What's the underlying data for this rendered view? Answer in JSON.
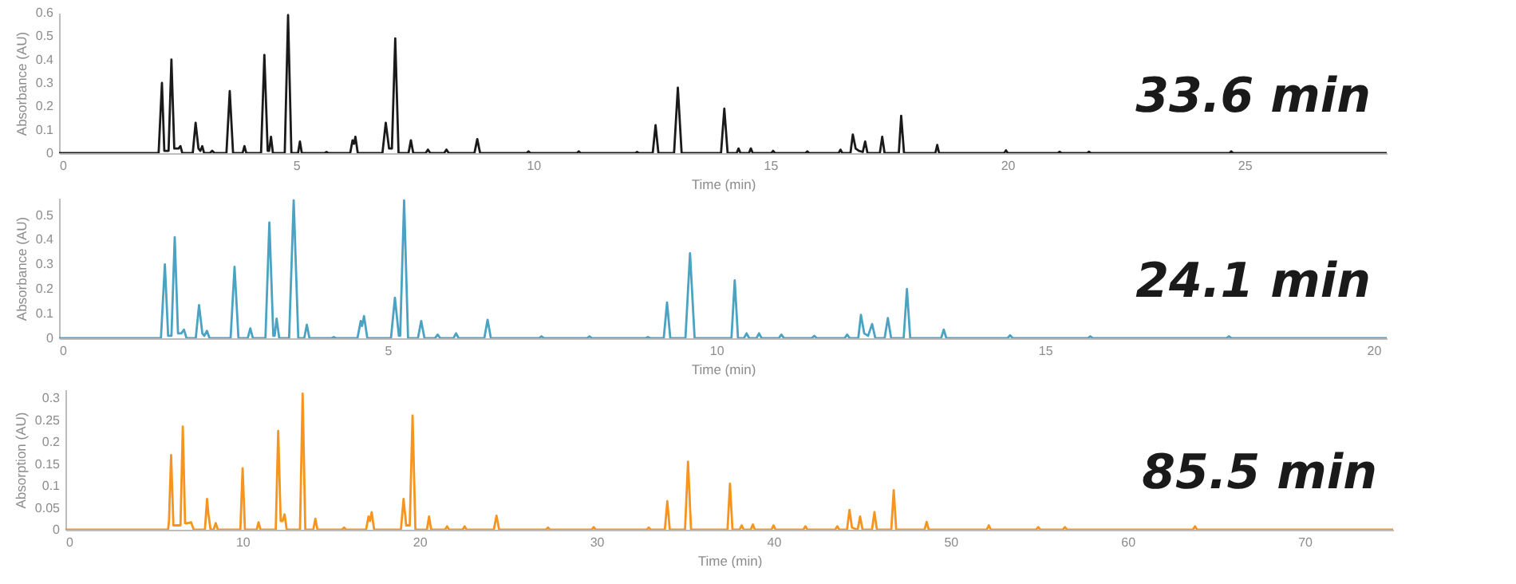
{
  "chart_data": [
    {
      "type": "line",
      "xlabel": "Time (min)",
      "ylabel": "Absorbance (AU)",
      "xlim": [
        0,
        28
      ],
      "xticks": [
        0,
        5,
        10,
        15,
        20,
        25
      ],
      "ylim": [
        0,
        0.6
      ],
      "yticks": [
        0,
        0.1,
        0.2,
        0.3,
        0.4,
        0.5,
        0.6
      ],
      "annotations": [
        "33.6 min"
      ],
      "x": [
        0,
        2.1,
        2.17,
        2.22,
        2.31,
        2.37,
        2.43,
        2.52,
        2.56,
        2.6,
        2.82,
        2.88,
        2.94,
        2.98,
        3.02,
        3.06,
        3.18,
        3.23,
        3.28,
        3.53,
        3.6,
        3.67,
        3.87,
        3.91,
        3.95,
        4.26,
        4.33,
        4.4,
        4.43,
        4.47,
        4.51,
        4.76,
        4.83,
        4.9,
        5.04,
        5.08,
        5.12,
        5.6,
        5.64,
        5.68,
        6.14,
        6.19,
        6.22,
        6.25,
        6.3,
        6.82,
        6.89,
        6.96,
        7.02,
        7.09,
        7.16,
        7.37,
        7.42,
        7.47,
        7.73,
        7.78,
        7.83,
        8.12,
        8.17,
        8.22,
        8.76,
        8.82,
        8.88,
        9.86,
        9.9,
        9.94,
        10.92,
        10.96,
        11.0,
        12.15,
        12.19,
        12.23,
        12.52,
        12.58,
        12.64,
        12.97,
        13.05,
        13.13,
        13.96,
        14.03,
        14.1,
        14.29,
        14.33,
        14.37,
        14.55,
        14.59,
        14.63,
        15.02,
        15.06,
        15.1,
        15.74,
        15.78,
        15.82,
        16.44,
        16.48,
        16.52,
        16.69,
        16.74,
        16.8,
        16.87,
        16.95,
        17.0,
        17.05,
        17.31,
        17.36,
        17.41,
        17.71,
        17.76,
        17.82,
        18.48,
        18.52,
        18.56,
        19.93,
        19.97,
        20.01,
        21.06,
        21.1,
        21.14,
        21.68,
        21.72,
        21.76,
        24.68,
        24.72,
        24.76,
        28
      ],
      "series": [
        {
          "color": "#1a1a1a",
          "values": [
            0,
            0,
            0.3,
            0.01,
            0.01,
            0.4,
            0.02,
            0.02,
            0.03,
            0,
            0,
            0.13,
            0.02,
            0.01,
            0.03,
            0,
            0,
            0.01,
            0,
            0,
            0.265,
            0,
            0,
            0.03,
            0,
            0,
            0.42,
            0.01,
            0.01,
            0.07,
            0,
            0,
            0.59,
            0,
            0,
            0.05,
            0,
            0,
            0.005,
            0,
            0,
            0.055,
            0.04,
            0.07,
            0,
            0,
            0.13,
            0.02,
            0.02,
            0.49,
            0,
            0,
            0.055,
            0,
            0,
            0.015,
            0,
            0,
            0.015,
            0,
            0,
            0.06,
            0,
            0,
            0.008,
            0,
            0,
            0.008,
            0,
            0,
            0.005,
            0,
            0,
            0.12,
            0,
            0,
            0.28,
            0,
            0,
            0.19,
            0,
            0,
            0.02,
            0,
            0,
            0.02,
            0,
            0,
            0.01,
            0,
            0,
            0.008,
            0,
            0,
            0.015,
            0,
            0,
            0.08,
            0.02,
            0.01,
            0.005,
            0.05,
            0,
            0,
            0.07,
            0,
            0,
            0.16,
            0,
            0,
            0.035,
            0,
            0,
            0.012,
            0,
            0,
            0.006,
            0,
            0,
            0.006,
            0,
            0,
            0.008,
            0,
            0
          ]
        }
      ]
    },
    {
      "type": "line",
      "xlabel": "Time (min)",
      "ylabel": "Absorbance (AU)",
      "xlim": [
        0,
        20.2
      ],
      "xticks": [
        0,
        5,
        10,
        15,
        20
      ],
      "ylim": [
        0,
        0.57
      ],
      "yticks": [
        0,
        0.1,
        0.2,
        0.3,
        0.4,
        0.5
      ],
      "annotations": [
        "24.1 min"
      ],
      "x": [
        0,
        1.55,
        1.61,
        1.66,
        1.71,
        1.76,
        1.81,
        1.86,
        1.9,
        1.94,
        2.08,
        2.13,
        2.18,
        2.21,
        2.25,
        2.29,
        2.61,
        2.67,
        2.73,
        2.87,
        2.91,
        2.95,
        3.14,
        3.2,
        3.26,
        3.28,
        3.31,
        3.35,
        3.5,
        3.57,
        3.64,
        3.73,
        3.77,
        3.81,
        4.14,
        4.18,
        4.22,
        4.54,
        4.59,
        4.61,
        4.64,
        4.69,
        5.05,
        5.11,
        5.17,
        5.19,
        5.25,
        5.31,
        5.46,
        5.51,
        5.56,
        5.72,
        5.76,
        5.8,
        6.0,
        6.04,
        6.08,
        6.47,
        6.52,
        6.57,
        7.3,
        7.34,
        7.38,
        8.03,
        8.07,
        8.11,
        8.92,
        8.96,
        9.0,
        9.2,
        9.25,
        9.3,
        9.53,
        9.6,
        9.67,
        10.23,
        10.28,
        10.33,
        10.42,
        10.46,
        10.5,
        10.61,
        10.65,
        10.69,
        10.95,
        10.99,
        11.03,
        11.45,
        11.49,
        11.53,
        11.95,
        11.99,
        12.03,
        12.16,
        12.2,
        12.25,
        12.31,
        12.37,
        12.42,
        12.56,
        12.61,
        12.66,
        12.85,
        12.9,
        12.95,
        13.42,
        13.46,
        13.5,
        14.43,
        14.47,
        14.51,
        15.65,
        15.69,
        15.73,
        17.76,
        17.8,
        17.84,
        20.2
      ],
      "series": [
        {
          "color": "#4ba3c3",
          "values": [
            0,
            0,
            0.3,
            0.01,
            0.01,
            0.41,
            0.02,
            0.02,
            0.035,
            0,
            0,
            0.135,
            0.02,
            0.01,
            0.03,
            0,
            0,
            0.29,
            0,
            0,
            0.04,
            0,
            0,
            0.47,
            0.01,
            0.01,
            0.08,
            0,
            0,
            0.56,
            0,
            0,
            0.055,
            0,
            0,
            0.005,
            0,
            0,
            0.07,
            0.05,
            0.09,
            0,
            0,
            0.165,
            0.01,
            0.01,
            0.56,
            0,
            0,
            0.07,
            0,
            0,
            0.015,
            0,
            0,
            0.02,
            0,
            0,
            0.075,
            0,
            0,
            0.008,
            0,
            0,
            0.008,
            0,
            0,
            0.005,
            0,
            0,
            0.145,
            0,
            0,
            0.345,
            0,
            0,
            0.235,
            0,
            0,
            0.02,
            0,
            0,
            0.02,
            0,
            0,
            0.015,
            0,
            0,
            0.01,
            0,
            0,
            0.015,
            0,
            0,
            0.095,
            0.02,
            0.01,
            0.058,
            0,
            0,
            0.082,
            0,
            0,
            0.2,
            0,
            0,
            0.035,
            0,
            0,
            0.012,
            0,
            0,
            0.008,
            0,
            0,
            0.008,
            0,
            0
          ]
        }
      ]
    },
    {
      "type": "line",
      "xlabel": "Time (min)",
      "ylabel": "Absorption (AU)",
      "xlim": [
        0,
        75
      ],
      "xticks": [
        0,
        10,
        20,
        30,
        40,
        50,
        60,
        70
      ],
      "ylim": [
        0,
        0.32
      ],
      "yticks": [
        0,
        0.05,
        0.1,
        0.15,
        0.2,
        0.25,
        0.3
      ],
      "annotations": [
        "85.5 min"
      ],
      "x": [
        0,
        5.8,
        5.85,
        5.97,
        6.1,
        6.5,
        6.63,
        6.76,
        6.9,
        7.1,
        7.25,
        7.88,
        8.0,
        8.08,
        8.2,
        8.37,
        8.49,
        8.61,
        9.88,
        10.01,
        10.14,
        10.8,
        10.91,
        11.02,
        11.88,
        12.02,
        12.16,
        12.27,
        12.38,
        12.5,
        13.25,
        13.4,
        13.55,
        14.0,
        14.12,
        14.24,
        15.63,
        15.74,
        15.85,
        16.98,
        17.12,
        17.2,
        17.3,
        17.44,
        18.95,
        19.1,
        19.25,
        19.45,
        19.61,
        19.77,
        20.42,
        20.54,
        20.66,
        21.45,
        21.56,
        21.67,
        22.44,
        22.55,
        22.66,
        24.2,
        24.35,
        24.5,
        27.15,
        27.26,
        27.37,
        29.73,
        29.84,
        29.95,
        32.84,
        32.95,
        33.06,
        33.86,
        34.0,
        34.14,
        35.0,
        35.17,
        35.34,
        37.4,
        37.54,
        37.68,
        38.08,
        38.2,
        38.32,
        38.71,
        38.83,
        38.95,
        39.88,
        40.0,
        40.12,
        41.68,
        41.8,
        41.92,
        43.48,
        43.6,
        43.72,
        44.15,
        44.29,
        44.43,
        44.75,
        44.89,
        45.03,
        45.56,
        45.7,
        45.84,
        46.65,
        46.79,
        46.93,
        48.53,
        48.65,
        48.77,
        52.04,
        52.16,
        52.28,
        54.83,
        54.95,
        55.07,
        56.34,
        56.46,
        56.58,
        63.69,
        63.81,
        63.93,
        75
      ],
      "series": [
        {
          "color": "#f7941d",
          "values": [
            0,
            0,
            0.02,
            0.17,
            0.01,
            0.01,
            0.235,
            0.015,
            0.015,
            0.017,
            0,
            0,
            0.07,
            0.035,
            0,
            0,
            0.015,
            0,
            0,
            0.14,
            0,
            0,
            0.017,
            0,
            0,
            0.225,
            0.02,
            0.02,
            0.035,
            0,
            0,
            0.31,
            0,
            0,
            0.025,
            0,
            0,
            0.005,
            0,
            0,
            0.03,
            0.02,
            0.04,
            0,
            0,
            0.07,
            0.01,
            0.01,
            0.26,
            0,
            0,
            0.03,
            0,
            0,
            0.008,
            0,
            0,
            0.008,
            0,
            0,
            0.032,
            0,
            0,
            0.005,
            0,
            0,
            0.006,
            0,
            0,
            0.005,
            0,
            0,
            0.065,
            0,
            0,
            0.155,
            0,
            0,
            0.105,
            0,
            0,
            0.01,
            0,
            0,
            0.012,
            0,
            0,
            0.01,
            0,
            0,
            0.008,
            0,
            0,
            0.008,
            0,
            0,
            0.045,
            0.005,
            0,
            0.03,
            0,
            0,
            0.04,
            0,
            0,
            0.09,
            0,
            0,
            0.018,
            0,
            0,
            0.01,
            0,
            0,
            0.006,
            0,
            0,
            0.006,
            0,
            0,
            0.008,
            0,
            0
          ]
        }
      ]
    }
  ]
}
